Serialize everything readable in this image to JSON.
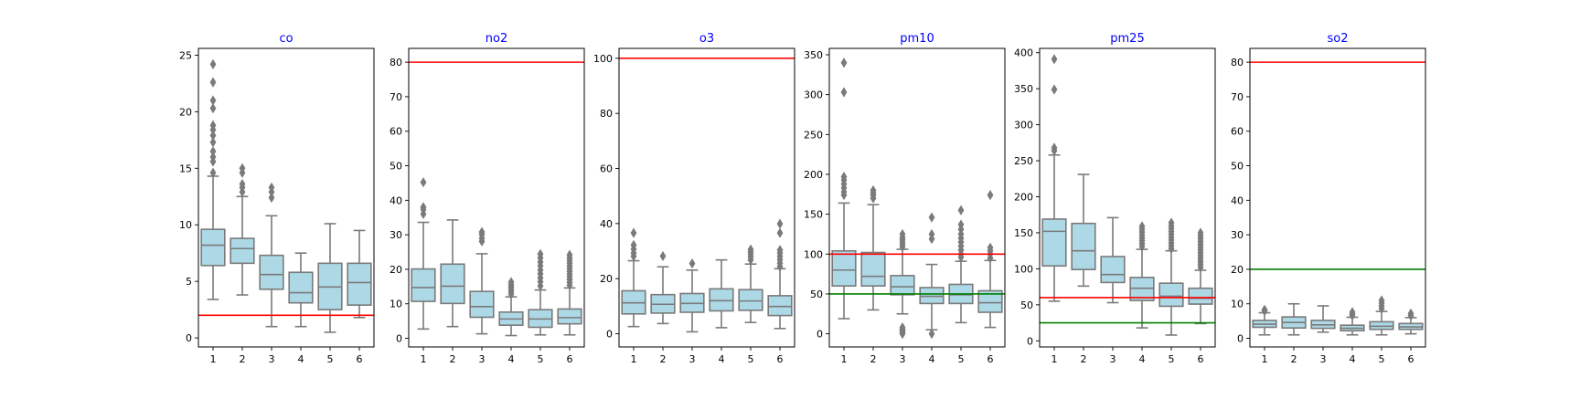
{
  "chart_data": [
    {
      "type": "box",
      "title": "co",
      "categories": [
        "1",
        "2",
        "3",
        "4",
        "5",
        "6"
      ],
      "ylim": [
        -0.8,
        25.6
      ],
      "yticks": [
        0,
        5,
        10,
        15,
        20,
        25
      ],
      "hlines": [
        {
          "y": 2.0,
          "color": "#ff0000"
        }
      ],
      "boxes": [
        {
          "whislo": 3.4,
          "q1": 6.4,
          "med": 8.2,
          "q3": 9.6,
          "whishi": 14.3,
          "fliers": [
            14.6,
            15.6,
            16.0,
            16.5,
            17.3,
            17.9,
            18.4,
            18.8,
            20.3,
            21.0,
            22.6,
            24.2
          ]
        },
        {
          "whislo": 3.8,
          "q1": 6.6,
          "med": 7.9,
          "q3": 8.8,
          "whishi": 12.5,
          "fliers": [
            12.9,
            13.3,
            13.6,
            14.6,
            15.0
          ]
        },
        {
          "whislo": 1.0,
          "q1": 4.3,
          "med": 5.6,
          "q3": 7.3,
          "whishi": 10.8,
          "fliers": [
            12.4,
            12.9,
            13.3
          ]
        },
        {
          "whislo": 1.0,
          "q1": 3.1,
          "med": 4.0,
          "q3": 5.8,
          "whishi": 7.5,
          "fliers": []
        },
        {
          "whislo": 0.5,
          "q1": 2.5,
          "med": 4.5,
          "q3": 6.6,
          "whishi": 10.1,
          "fliers": []
        },
        {
          "whislo": 1.8,
          "q1": 2.9,
          "med": 4.9,
          "q3": 6.6,
          "whishi": 9.5,
          "fliers": []
        }
      ]
    },
    {
      "type": "box",
      "title": "no2",
      "categories": [
        "1",
        "2",
        "3",
        "4",
        "5",
        "6"
      ],
      "ylim": [
        -2.5,
        84.0
      ],
      "yticks": [
        0,
        10,
        20,
        30,
        40,
        50,
        60,
        70,
        80
      ],
      "hlines": [
        {
          "y": 80.0,
          "color": "#ff0000"
        }
      ],
      "boxes": [
        {
          "whislo": 2.7,
          "q1": 10.7,
          "med": 14.7,
          "q3": 20.1,
          "whishi": 33.6,
          "fliers": [
            36.0,
            37.3,
            38.0,
            45.2
          ]
        },
        {
          "whislo": 3.4,
          "q1": 10.1,
          "med": 15.1,
          "q3": 21.5,
          "whishi": 34.3,
          "fliers": []
        },
        {
          "whislo": 1.3,
          "q1": 6.1,
          "med": 9.2,
          "q3": 13.6,
          "whishi": 24.5,
          "fliers": [
            28.1,
            29.0,
            30.1,
            30.8
          ]
        },
        {
          "whislo": 0.8,
          "q1": 3.8,
          "med": 5.6,
          "q3": 7.6,
          "whishi": 12.0,
          "fliers": [
            12.8,
            13.5,
            14.2,
            14.9,
            15.6,
            16.3
          ]
        },
        {
          "whislo": 1.0,
          "q1": 3.2,
          "med": 5.6,
          "q3": 8.3,
          "whishi": 14.0,
          "fliers": [
            15.2,
            16.4,
            17.5,
            18.7,
            19.8,
            21.0,
            22.1,
            23.3,
            24.4
          ]
        },
        {
          "whislo": 1.0,
          "q1": 4.2,
          "med": 6.0,
          "q3": 8.5,
          "whishi": 14.6,
          "fliers": [
            15.4,
            16.2,
            17.0,
            17.8,
            18.6,
            19.4,
            20.2,
            21.0,
            21.8,
            22.6,
            23.4,
            24.2
          ]
        }
      ]
    },
    {
      "type": "box",
      "title": "o3",
      "categories": [
        "1",
        "2",
        "3",
        "4",
        "5",
        "6"
      ],
      "ylim": [
        -4.8,
        103.6
      ],
      "yticks": [
        0,
        20,
        40,
        60,
        80,
        100
      ],
      "hlines": [
        {
          "y": 100.0,
          "color": "#ff0000"
        }
      ],
      "boxes": [
        {
          "whislo": 2.6,
          "q1": 7.2,
          "med": 11.2,
          "q3": 15.6,
          "whishi": 26.5,
          "fliers": [
            28.1,
            29.3,
            30.7,
            32.2,
            36.6
          ]
        },
        {
          "whislo": 3.7,
          "q1": 7.5,
          "med": 10.7,
          "q3": 14.2,
          "whishi": 24.3,
          "fliers": [
            28.2
          ]
        },
        {
          "whislo": 0.7,
          "q1": 7.8,
          "med": 11.0,
          "q3": 14.6,
          "whishi": 23.1,
          "fliers": [
            25.5
          ]
        },
        {
          "whislo": 2.2,
          "q1": 8.3,
          "med": 12.0,
          "q3": 16.3,
          "whishi": 26.8,
          "fliers": []
        },
        {
          "whislo": 4.1,
          "q1": 8.5,
          "med": 11.9,
          "q3": 16.0,
          "whishi": 25.3,
          "fliers": [
            26.8,
            27.9,
            28.8,
            29.7,
            30.6
          ]
        },
        {
          "whislo": 1.9,
          "q1": 6.6,
          "med": 9.9,
          "q3": 13.8,
          "whishi": 23.6,
          "fliers": [
            24.4,
            25.6,
            26.9,
            28.1,
            29.3,
            30.4,
            36.6,
            39.9
          ]
        }
      ]
    },
    {
      "type": "box",
      "title": "pm10",
      "categories": [
        "1",
        "2",
        "3",
        "4",
        "5",
        "6"
      ],
      "ylim": [
        -16.5,
        358.0
      ],
      "yticks": [
        0,
        50,
        100,
        150,
        200,
        250,
        300,
        350
      ],
      "hlines": [
        {
          "y": 100.0,
          "color": "#ff0000"
        },
        {
          "y": 50.0,
          "color": "#008000"
        }
      ],
      "boxes": [
        {
          "whislo": 19,
          "q1": 60,
          "med": 80,
          "q3": 104,
          "whishi": 164,
          "fliers": [
            174,
            178,
            183,
            188,
            193,
            197,
            303,
            340
          ]
        },
        {
          "whislo": 30,
          "q1": 60,
          "med": 72,
          "q3": 102,
          "whishi": 162,
          "fliers": [
            170,
            174,
            177,
            180
          ]
        },
        {
          "whislo": 25,
          "q1": 49,
          "med": 59,
          "q3": 73,
          "whishi": 106,
          "fliers": [
            109,
            112,
            115,
            118,
            121,
            125,
            0,
            2,
            4,
            6,
            8
          ]
        },
        {
          "whislo": 5,
          "q1": 38,
          "med": 47,
          "q3": 58,
          "whishi": 87,
          "fliers": [
            119,
            125,
            146,
            0
          ]
        },
        {
          "whislo": 14,
          "q1": 38,
          "med": 49,
          "q3": 62,
          "whishi": 91,
          "fliers": [
            96,
            100,
            105,
            110,
            115,
            120,
            125,
            131,
            137,
            155
          ]
        },
        {
          "whislo": 8,
          "q1": 27,
          "med": 39,
          "q3": 54,
          "whishi": 92,
          "fliers": [
            95,
            100,
            104,
            108,
            174
          ]
        }
      ]
    },
    {
      "type": "box",
      "title": "pm25",
      "categories": [
        "1",
        "2",
        "3",
        "4",
        "5",
        "6"
      ],
      "ylim": [
        -8.5,
        406.0
      ],
      "yticks": [
        0,
        50,
        100,
        150,
        200,
        250,
        300,
        350,
        400
      ],
      "hlines": [
        {
          "y": 60.0,
          "color": "#ff0000"
        },
        {
          "y": 25.0,
          "color": "#008000"
        }
      ],
      "boxes": [
        {
          "whislo": 55,
          "q1": 104,
          "med": 152,
          "q3": 169,
          "whishi": 258,
          "fliers": [
            264,
            268,
            349,
            391
          ]
        },
        {
          "whislo": 76,
          "q1": 99,
          "med": 125,
          "q3": 163,
          "whishi": 231,
          "fliers": []
        },
        {
          "whislo": 53,
          "q1": 81,
          "med": 92,
          "q3": 117,
          "whishi": 171,
          "fliers": []
        },
        {
          "whislo": 18,
          "q1": 56,
          "med": 73,
          "q3": 88,
          "whishi": 127,
          "fliers": [
            131,
            135,
            139,
            143,
            147,
            151,
            155,
            159
          ]
        },
        {
          "whislo": 8,
          "q1": 48,
          "med": 62,
          "q3": 80,
          "whishi": 125,
          "fliers": [
            128,
            132,
            136,
            140,
            144,
            148,
            152,
            156,
            160,
            164
          ]
        },
        {
          "whislo": 24,
          "q1": 51,
          "med": 59,
          "q3": 73,
          "whishi": 98,
          "fliers": [
            102,
            106,
            110,
            114,
            118,
            122,
            126,
            130,
            134,
            138,
            142,
            146,
            150
          ]
        }
      ]
    },
    {
      "type": "box",
      "title": "so2",
      "categories": [
        "1",
        "2",
        "3",
        "4",
        "5",
        "6"
      ],
      "ylim": [
        -2.5,
        84.0
      ],
      "yticks": [
        0,
        10,
        20,
        30,
        40,
        50,
        60,
        70,
        80
      ],
      "hlines": [
        {
          "y": 80.0,
          "color": "#ff0000"
        },
        {
          "y": 20.0,
          "color": "#008000"
        }
      ],
      "boxes": [
        {
          "whislo": 1.0,
          "q1": 3.2,
          "med": 4.1,
          "q3": 5.2,
          "whishi": 7.4,
          "fliers": [
            7.9,
            8.3
          ]
        },
        {
          "whislo": 1.0,
          "q1": 3.0,
          "med": 4.6,
          "q3": 6.2,
          "whishi": 10.0,
          "fliers": []
        },
        {
          "whislo": 1.8,
          "q1": 2.9,
          "med": 3.9,
          "q3": 5.2,
          "whishi": 9.4,
          "fliers": []
        },
        {
          "whislo": 1.0,
          "q1": 2.2,
          "med": 2.9,
          "q3": 3.8,
          "whishi": 6.1,
          "fliers": [
            6.6,
            7.1,
            7.6
          ]
        },
        {
          "whislo": 1.0,
          "q1": 2.6,
          "med": 3.5,
          "q3": 4.8,
          "whishi": 7.8,
          "fliers": [
            8.6,
            9.4,
            10.2,
            11.0
          ]
        },
        {
          "whislo": 1.3,
          "q1": 2.6,
          "med": 3.3,
          "q3": 4.3,
          "whishi": 6.0,
          "fliers": [
            6.6,
            7.2
          ]
        }
      ]
    }
  ],
  "colors": {
    "box_fill": "#add8e6",
    "box_edge": "#7a7a7a",
    "title": "#0000ff",
    "axis": "#000000"
  }
}
